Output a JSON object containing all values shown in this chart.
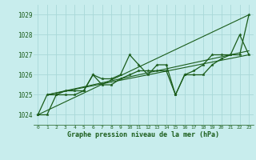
{
  "title": "Graphe pression niveau de la mer (hPa)",
  "background_color": "#c8eded",
  "grid_color": "#a8d8d8",
  "line_color": "#1a5c1a",
  "xlim": [
    -0.5,
    23.5
  ],
  "ylim": [
    1023.5,
    1029.5
  ],
  "yticks": [
    1024,
    1025,
    1026,
    1027,
    1028,
    1029
  ],
  "xticks": [
    0,
    1,
    2,
    3,
    4,
    5,
    6,
    7,
    8,
    9,
    10,
    11,
    12,
    13,
    14,
    15,
    16,
    17,
    18,
    19,
    20,
    21,
    22,
    23
  ],
  "series_marked_1": {
    "x": [
      0,
      1,
      2,
      3,
      4,
      5,
      6,
      7,
      8,
      9,
      10,
      11,
      12,
      13,
      14,
      15,
      16,
      17,
      18,
      19,
      20,
      21,
      22,
      23
    ],
    "y": [
      1024.0,
      1025.0,
      1025.0,
      1025.2,
      1025.2,
      1025.2,
      1026.0,
      1025.8,
      1025.8,
      1026.0,
      1027.0,
      1026.5,
      1026.0,
      1026.5,
      1026.5,
      1025.0,
      1026.0,
      1026.2,
      1026.5,
      1027.0,
      1027.0,
      1027.0,
      1028.0,
      1027.0
    ]
  },
  "series_marked_2": {
    "x": [
      0,
      1,
      2,
      3,
      4,
      5,
      6,
      7,
      8,
      9,
      10,
      11,
      12,
      13,
      14,
      15,
      16,
      17,
      18,
      19,
      20,
      21,
      22,
      23
    ],
    "y": [
      1024.0,
      1024.0,
      1025.0,
      1025.0,
      1025.0,
      1025.2,
      1026.0,
      1025.5,
      1025.5,
      1025.8,
      1026.0,
      1026.2,
      1026.2,
      1026.2,
      1026.2,
      1025.0,
      1026.0,
      1026.0,
      1026.0,
      1026.5,
      1026.8,
      1027.0,
      1027.0,
      1029.0
    ]
  },
  "series_line_1": {
    "x": [
      0,
      23
    ],
    "y": [
      1024.0,
      1029.0
    ]
  },
  "series_line_2": {
    "x": [
      1,
      23
    ],
    "y": [
      1025.0,
      1027.0
    ]
  },
  "series_line_3": {
    "x": [
      1,
      23
    ],
    "y": [
      1025.0,
      1027.2
    ]
  }
}
